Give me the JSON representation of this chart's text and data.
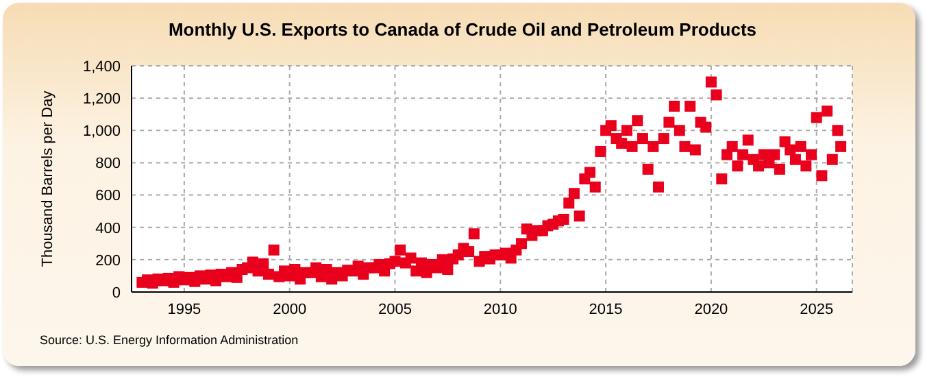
{
  "chart_data": {
    "type": "scatter",
    "title": "Monthly U.S. Exports to Canada of Crude Oil and Petroleum Products",
    "ylabel": "Thousand Barrels per Day",
    "annotations": [
      "Source: U.S. Energy Information Administration"
    ],
    "x": [
      1993,
      1993.25,
      1993.5,
      1993.75,
      1994,
      1994.25,
      1994.5,
      1994.75,
      1995,
      1995.25,
      1995.5,
      1995.75,
      1996,
      1996.25,
      1996.5,
      1996.75,
      1997,
      1997.25,
      1997.5,
      1997.75,
      1998,
      1998.25,
      1998.5,
      1998.75,
      1999,
      1999.25,
      1999.5,
      1999.75,
      2000,
      2000.25,
      2000.5,
      2000.75,
      2001,
      2001.25,
      2001.5,
      2001.75,
      2002,
      2002.25,
      2002.5,
      2002.75,
      2003,
      2003.25,
      2003.5,
      2003.75,
      2004,
      2004.25,
      2004.5,
      2004.75,
      2005,
      2005.25,
      2005.5,
      2005.75,
      2006,
      2006.25,
      2006.5,
      2006.75,
      2007,
      2007.25,
      2007.5,
      2007.75,
      2008,
      2008.25,
      2008.5,
      2008.75,
      2009,
      2009.25,
      2009.5,
      2009.75,
      2010,
      2010.25,
      2010.5,
      2010.75,
      2011,
      2011.25,
      2011.5,
      2011.75,
      2012,
      2012.25,
      2012.5,
      2012.75,
      2013,
      2013.25,
      2013.5,
      2013.75,
      2014,
      2014.25,
      2014.5,
      2014.75,
      2015,
      2015.25,
      2015.5,
      2015.75,
      2016,
      2016.25,
      2016.5,
      2016.75,
      2017,
      2017.25,
      2017.5,
      2017.75,
      2018,
      2018.25,
      2018.5,
      2018.75,
      2019,
      2019.25,
      2019.5,
      2019.75,
      2020,
      2020.25,
      2020.5,
      2020.75,
      2021,
      2021.25,
      2021.5,
      2021.75,
      2022,
      2022.25,
      2022.5,
      2022.75,
      2023,
      2023.25,
      2023.5,
      2023.75,
      2024,
      2024.25,
      2024.5,
      2024.75,
      2025,
      2025.25,
      2025.5,
      2025.75,
      2026,
      2026.15
    ],
    "series": [
      {
        "color": "#e8001c",
        "values": [
          60,
          75,
          55,
          80,
          70,
          85,
          60,
          95,
          75,
          90,
          65,
          100,
          80,
          105,
          70,
          110,
          95,
          120,
          90,
          140,
          150,
          185,
          130,
          175,
          110,
          260,
          95,
          130,
          100,
          140,
          80,
          120,
          120,
          150,
          95,
          140,
          80,
          120,
          100,
          135,
          130,
          160,
          110,
          150,
          150,
          170,
          130,
          175,
          190,
          260,
          180,
          210,
          130,
          180,
          120,
          170,
          150,
          200,
          140,
          205,
          230,
          270,
          250,
          360,
          190,
          220,
          205,
          230,
          230,
          240,
          210,
          260,
          300,
          390,
          350,
          380,
          380,
          410,
          420,
          440,
          450,
          550,
          610,
          470,
          700,
          740,
          650,
          870,
          1000,
          1030,
          950,
          920,
          1000,
          900,
          1060,
          950,
          760,
          900,
          650,
          950,
          1050,
          1150,
          1000,
          900,
          1150,
          880,
          1050,
          1020,
          1300,
          1220,
          700,
          850,
          900,
          780,
          850,
          940,
          820,
          780,
          850,
          800,
          850,
          760,
          930,
          880,
          820,
          900,
          780,
          850,
          1080,
          720,
          1120,
          820,
          1000,
          900
        ]
      }
    ],
    "xlim": [
      1992.5,
      2026.7
    ],
    "xticks": [
      1995,
      2000,
      2005,
      2010,
      2015,
      2020,
      2025
    ],
    "ylim": [
      0,
      1400
    ],
    "yticks": [
      0,
      200,
      400,
      600,
      800,
      {
        "value": 1000,
        "label": "1,000"
      },
      {
        "value": 1200,
        "label": "1,200"
      },
      {
        "value": 1400,
        "label": "1,400"
      }
    ],
    "grid": true,
    "marker": "square",
    "legend": false
  }
}
